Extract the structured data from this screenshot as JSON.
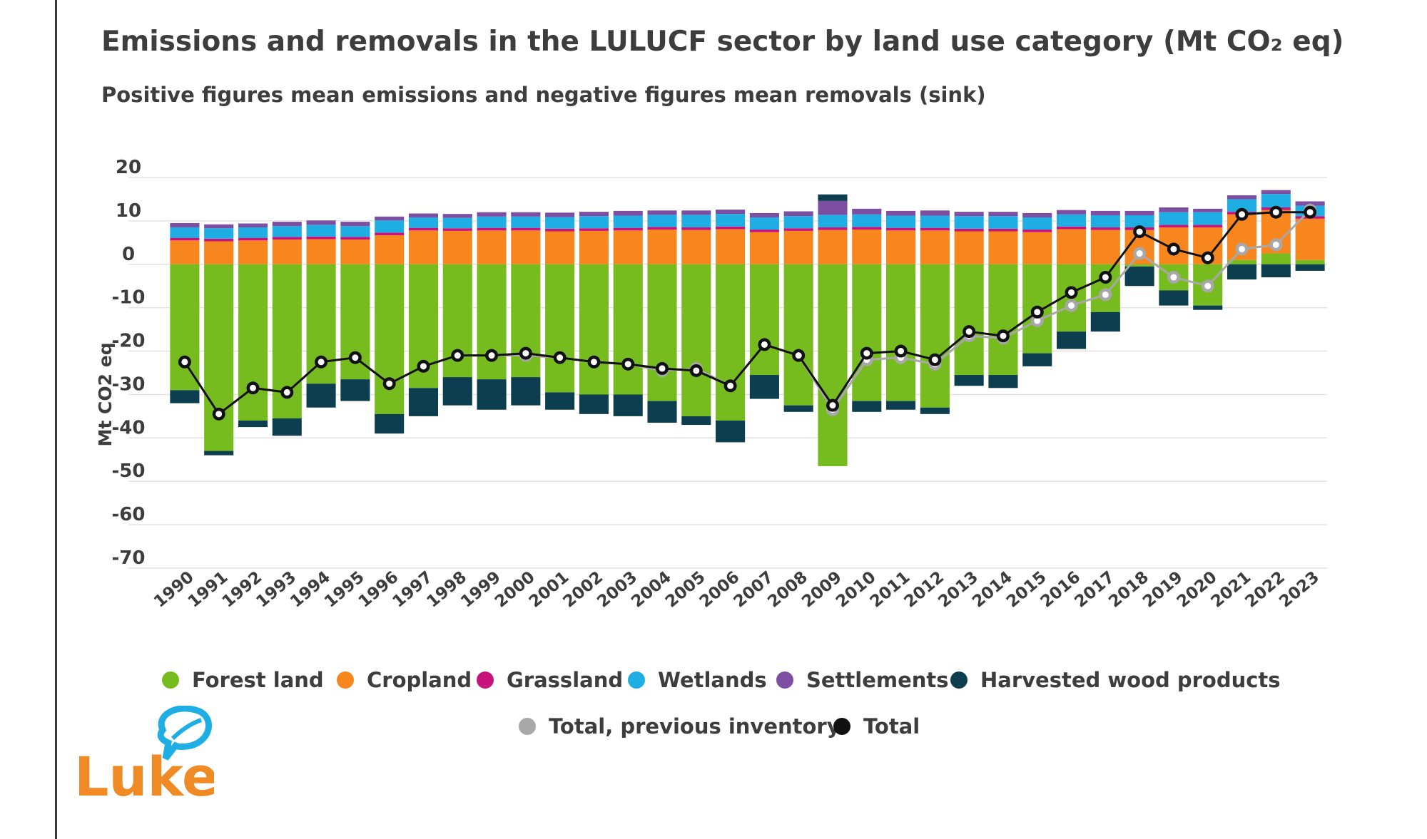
{
  "title": "Emissions and removals in the LULUCF sector by land use category (Mt CO₂ eq)",
  "subtitle": "Positive figures mean emissions and negative figures mean removals (sink)",
  "logo_text": "Luke",
  "colors": {
    "forest": "#77bc1f",
    "cropland": "#f7861e",
    "grassland": "#c8137c",
    "wetlands": "#1eaee4",
    "settlements": "#7d4ea2",
    "hwp": "#0d3e4f",
    "total": "#111111",
    "previous": "#a8a8a8",
    "grid": "#e2e2e2",
    "logo": "#f08a24",
    "logo_leaf": "#1eaee4"
  },
  "chart_data": {
    "type": "bar",
    "stacked": true,
    "title": "Emissions and removals in the LULUCF sector by land use category (Mt CO₂ eq)",
    "subtitle": "Positive figures mean emissions and negative figures mean removals (sink)",
    "xlabel": "",
    "ylabel": "Mt CO2 eq",
    "ylim": [
      -70,
      20
    ],
    "yticks": [
      20,
      10,
      0,
      -10,
      -20,
      -30,
      -40,
      -50,
      -60,
      -70
    ],
    "grid": true,
    "legend_position": "bottom",
    "categories": [
      "1990",
      "1991",
      "1992",
      "1993",
      "1994",
      "1995",
      "1996",
      "1997",
      "1998",
      "1999",
      "2000",
      "2001",
      "2002",
      "2003",
      "2004",
      "2005",
      "2006",
      "2007",
      "2008",
      "2009",
      "2010",
      "2011",
      "2012",
      "2013",
      "2014",
      "2015",
      "2016",
      "2017",
      "2018",
      "2019",
      "2020",
      "2021",
      "2022",
      "2023"
    ],
    "series": [
      {
        "name": "Forest land",
        "key": "forest",
        "kind": "bar",
        "values": [
          -29,
          -43,
          -36,
          -35.5,
          -27.5,
          -26.5,
          -34.5,
          -28.5,
          -26,
          -26.5,
          -26,
          -29.5,
          -30,
          -30,
          -31.5,
          -35,
          -36,
          -25.5,
          -32.5,
          -46.5,
          -31.5,
          -31.5,
          -33,
          -25.5,
          -25.5,
          -20.5,
          -15.5,
          -11,
          -0.5,
          -6,
          -9.5,
          1,
          2.5,
          1
        ]
      },
      {
        "name": "Harvested wood products",
        "key": "hwp",
        "kind": "bar",
        "values": [
          -3,
          -1,
          -1.5,
          -4,
          -5.5,
          -5,
          -4.5,
          -6.5,
          -6.5,
          -7,
          -6.5,
          -4,
          -4.5,
          -5,
          -5,
          -2,
          -5,
          -5.5,
          -1.5,
          1.5,
          -2.5,
          -2,
          -1.5,
          -2.5,
          -3,
          -3,
          -4,
          -4.5,
          -4.5,
          -3.5,
          -1,
          -3.5,
          -3,
          -1.5
        ]
      },
      {
        "name": "Cropland",
        "key": "cropland",
        "kind": "bar",
        "values": [
          5.5,
          5.3,
          5.5,
          5.7,
          5.8,
          5.7,
          6.7,
          7.8,
          7.7,
          7.8,
          7.8,
          7.6,
          7.7,
          7.8,
          8,
          7.9,
          8.1,
          7.4,
          7.7,
          7.9,
          8,
          7.8,
          7.8,
          7.6,
          7.6,
          7.4,
          8.1,
          7.9,
          7.9,
          8.5,
          8.5,
          10.5,
          10,
          9.5
        ]
      },
      {
        "name": "Grassland",
        "key": "grassland",
        "kind": "bar",
        "values": [
          0.6,
          0.6,
          0.6,
          0.6,
          0.6,
          0.6,
          0.6,
          0.6,
          0.6,
          0.6,
          0.6,
          0.6,
          0.6,
          0.6,
          0.6,
          0.6,
          0.6,
          0.6,
          0.6,
          0.6,
          0.6,
          0.6,
          0.6,
          0.6,
          0.6,
          0.6,
          0.6,
          0.6,
          0.6,
          0.6,
          0.6,
          0.6,
          0.6,
          0.6
        ]
      },
      {
        "name": "Wetlands",
        "key": "wetlands",
        "kind": "bar",
        "values": [
          2.4,
          2.4,
          2.4,
          2.5,
          2.7,
          2.5,
          2.8,
          2.4,
          2.4,
          2.6,
          2.6,
          2.7,
          2.8,
          2.8,
          2.8,
          2.9,
          2.9,
          2.8,
          2.8,
          2.9,
          2.9,
          2.8,
          2.8,
          2.9,
          2.9,
          2.8,
          2.8,
          2.8,
          2.8,
          2.9,
          2.9,
          2.9,
          3.1,
          2.4
        ]
      },
      {
        "name": "Settlements",
        "key": "settlements",
        "kind": "bar",
        "values": [
          1,
          0.9,
          0.9,
          1,
          1,
          1,
          0.9,
          0.9,
          0.9,
          1,
          1,
          1,
          1,
          1.1,
          1,
          1,
          1,
          1,
          1.1,
          3.2,
          1.3,
          1.1,
          1.2,
          1,
          1,
          1,
          1,
          1,
          1,
          1.1,
          0.8,
          0.9,
          0.9,
          1
        ]
      },
      {
        "name": "Total, previous inventory",
        "key": "previous",
        "kind": "line",
        "values": [
          -22.5,
          -34.5,
          -28.5,
          -29.5,
          -22.5,
          -21.5,
          -27.5,
          -23.5,
          -21,
          -21,
          -21,
          -21.5,
          -22.5,
          -23,
          -24.5,
          -24,
          -28,
          -18.5,
          -21,
          -33.5,
          -22,
          -21.5,
          -23,
          -16.5,
          -17,
          -13,
          -9.5,
          -7,
          2.5,
          -3,
          -5,
          3.5,
          4.5,
          12.5
        ]
      },
      {
        "name": "Total",
        "key": "total",
        "kind": "line",
        "values": [
          -22.5,
          -34.5,
          -28.5,
          -29.5,
          -22.5,
          -21.5,
          -27.5,
          -23.5,
          -21,
          -21,
          -20.5,
          -21.5,
          -22.5,
          -23,
          -24,
          -24.5,
          -28,
          -18.5,
          -21,
          -32.5,
          -20.5,
          -20,
          -22,
          -15.5,
          -16.5,
          -11,
          -6.5,
          -3,
          7.5,
          3.5,
          1.5,
          11.5,
          12,
          12
        ]
      }
    ],
    "legend": [
      {
        "name": "Forest land",
        "key": "forest"
      },
      {
        "name": "Cropland",
        "key": "cropland"
      },
      {
        "name": "Grassland",
        "key": "grassland"
      },
      {
        "name": "Wetlands",
        "key": "wetlands"
      },
      {
        "name": "Settlements",
        "key": "settlements"
      },
      {
        "name": "Harvested wood products",
        "key": "hwp"
      },
      {
        "name": "Total, previous inventory",
        "key": "previous"
      },
      {
        "name": "Total",
        "key": "total"
      }
    ]
  }
}
